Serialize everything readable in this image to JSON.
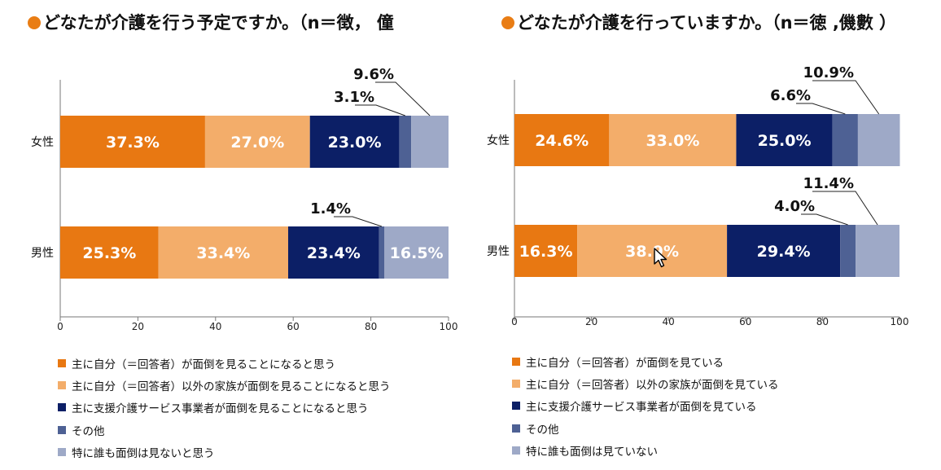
{
  "palette": [
    "#e87812",
    "#f3ad6a",
    "#0c1f66",
    "#4e6194",
    "#9ea9c7"
  ],
  "chart_data": [
    {
      "type": "bar",
      "orientation": "horizontal",
      "stacked": true,
      "title": "どなたが介護を行う予定ですか。（n＝徴， 僮",
      "categories": [
        "女性",
        "男性"
      ],
      "series": [
        {
          "name": "主に自分（＝回答者）が面倒を見ることになると思う",
          "values": [
            37.3,
            25.3
          ]
        },
        {
          "name": "主に自分（＝回答者）以外の家族が面倒を見ることになると思う",
          "values": [
            27.0,
            33.4
          ]
        },
        {
          "name": "主に支援介護サービス事業者が面倒を見ることになると思う",
          "values": [
            23.0,
            23.4
          ]
        },
        {
          "name": "その他",
          "values": [
            3.1,
            1.4
          ]
        },
        {
          "name": "特に誰も面倒は見ないと思う",
          "values": [
            9.6,
            16.5
          ]
        }
      ],
      "xlim": [
        0,
        100
      ],
      "xticks": [
        0,
        20,
        40,
        60,
        80,
        100
      ],
      "grid": false,
      "legend_position": "bottom"
    },
    {
      "type": "bar",
      "orientation": "horizontal",
      "stacked": true,
      "title": "どなたが介護を行っていますか。（n＝徳 ,僟數 ）",
      "categories": [
        "女性",
        "男性"
      ],
      "series": [
        {
          "name": "主に自分（＝回答者）が面倒を見ている",
          "values": [
            24.6,
            16.3
          ]
        },
        {
          "name": "主に自分（＝回答者）以外の家族が面倒を見ている",
          "values": [
            33.0,
            38.9
          ]
        },
        {
          "name": "主に支援介護サービス事業者が面倒を見ている",
          "values": [
            25.0,
            29.4
          ]
        },
        {
          "name": "その他",
          "values": [
            6.6,
            4.0
          ]
        },
        {
          "name": "特に誰も面倒は見ていない",
          "values": [
            10.9,
            11.4
          ]
        }
      ],
      "xlim": [
        0,
        100
      ],
      "xticks": [
        0,
        20,
        40,
        60,
        80,
        100
      ],
      "grid": false,
      "legend_position": "bottom"
    }
  ]
}
